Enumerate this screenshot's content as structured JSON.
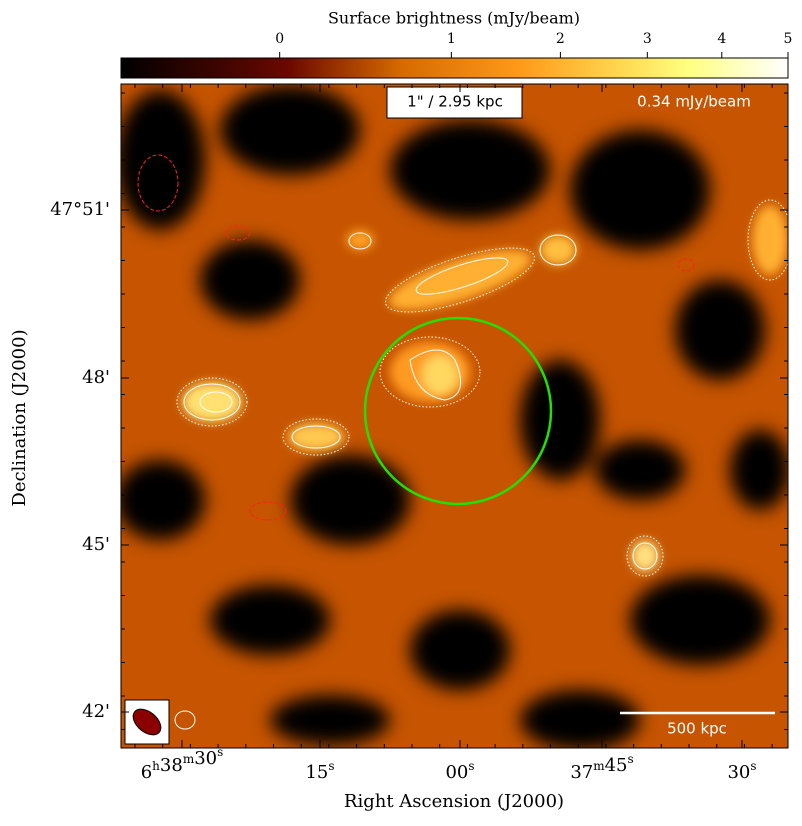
{
  "image": {
    "colorbar": {
      "label": "Surface brightness (mJy/beam)",
      "lim": [
        -0.3,
        5
      ],
      "ticks": [
        0,
        1,
        2,
        3,
        4,
        5
      ],
      "stretch": "sqrt"
    },
    "x_axis": {
      "label": "Right Ascension (J2000)",
      "ticks": [
        "6h38m30s",
        "15s",
        "00s",
        "37m45s",
        "30s"
      ]
    },
    "y_axis": {
      "label": "Declination (J2000)",
      "ticks": [
        "47°51'",
        "48'",
        "45'",
        "42'"
      ]
    },
    "annotations": {
      "scale": "1\" / 2.95 kpc",
      "rms": "0.34 mJy/beam",
      "scalebar": "500 kpc"
    }
  }
}
